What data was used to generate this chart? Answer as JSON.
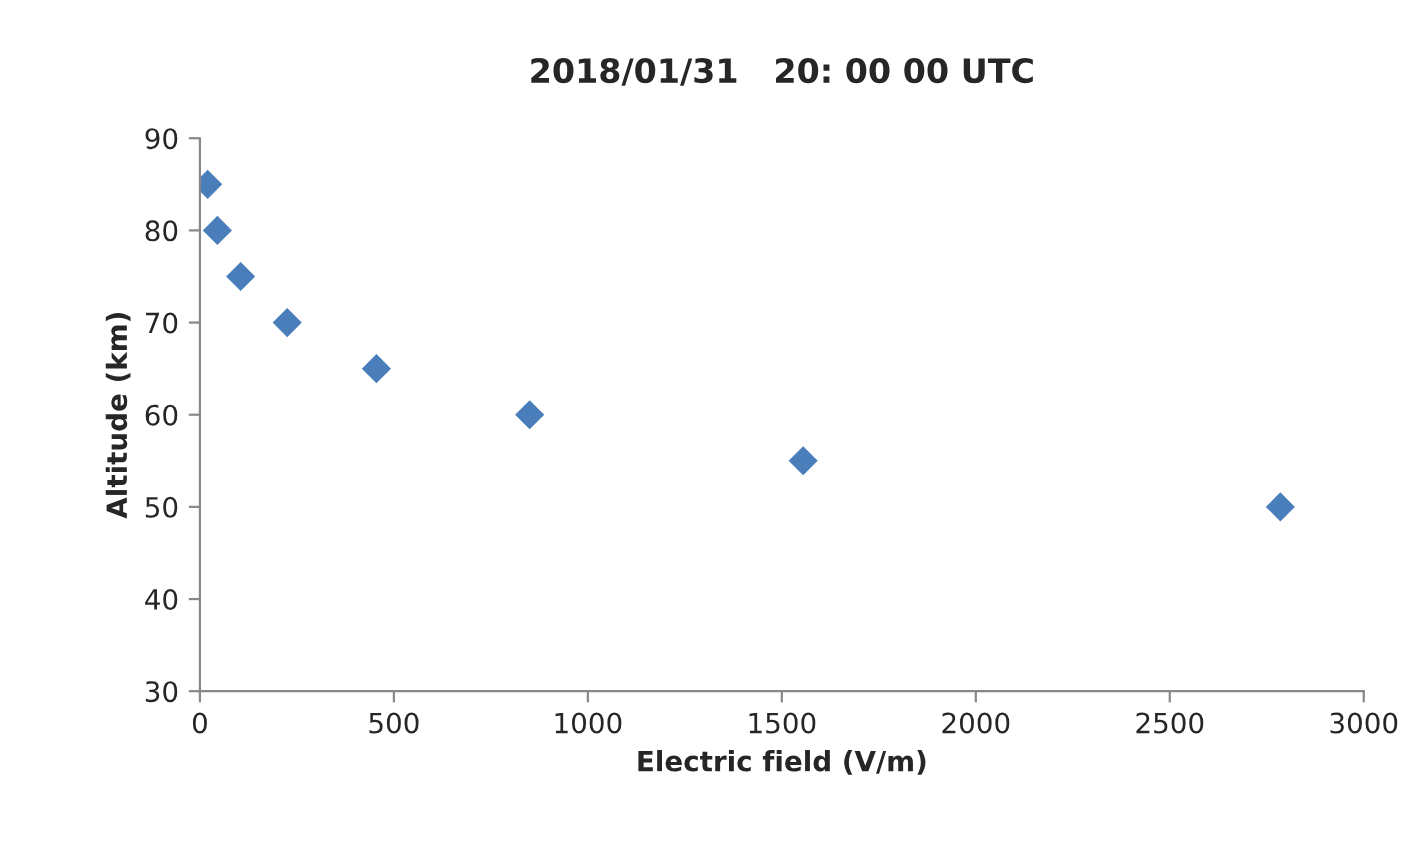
{
  "chart_data": {
    "type": "scatter",
    "title": "2018/01/31   20: 00 00 UTC",
    "xlabel": "Electric field (V/m)",
    "ylabel": "Altitude (km)",
    "x": [
      20,
      45,
      105,
      225,
      455,
      850,
      1555,
      2785
    ],
    "series": [
      {
        "color": "#4a7ebb",
        "values": [
          85,
          80,
          75,
          70,
          65,
          60,
          55,
          50
        ]
      }
    ],
    "xlim": [
      0,
      3000
    ],
    "xticks": [
      0,
      500,
      1000,
      1500,
      2000,
      2500,
      3000
    ],
    "ylim": [
      30,
      90
    ],
    "yticks": [
      30,
      40,
      50,
      60,
      70,
      80,
      90
    ],
    "grid": false,
    "marker": "diamond"
  }
}
